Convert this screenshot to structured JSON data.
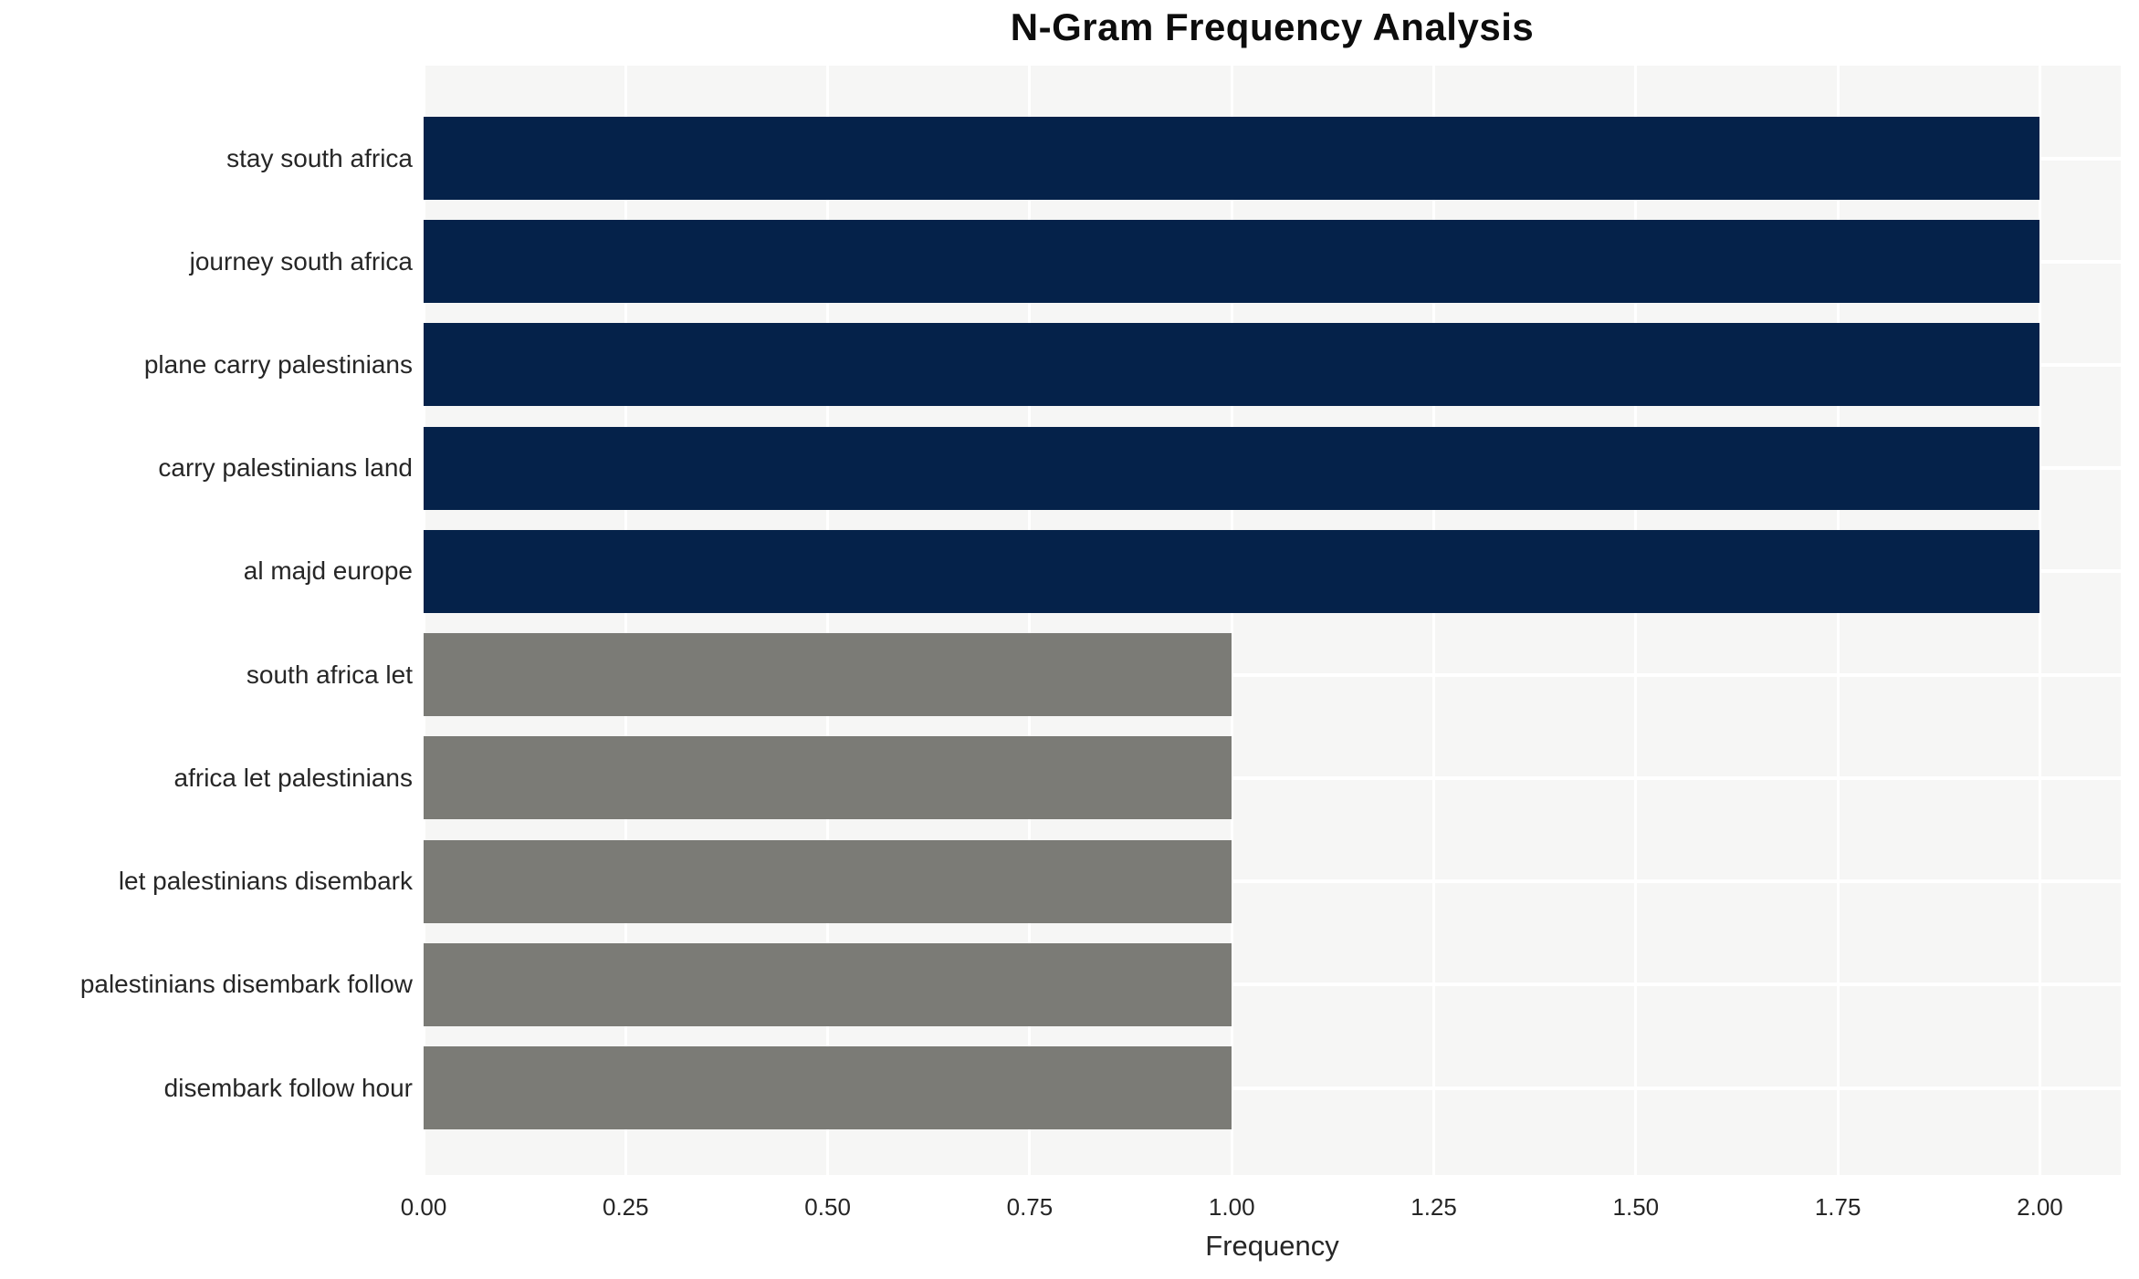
{
  "chart_data": {
    "type": "bar",
    "orientation": "horizontal",
    "title": "N-Gram Frequency Analysis",
    "xlabel": "Frequency",
    "ylabel": "",
    "categories": [
      "stay south africa",
      "journey south africa",
      "plane carry palestinians",
      "carry palestinians land",
      "al majd europe",
      "south africa let",
      "africa let palestinians",
      "let palestinians disembark",
      "palestinians disembark follow",
      "disembark follow hour"
    ],
    "values": [
      2,
      2,
      2,
      2,
      2,
      1,
      1,
      1,
      1,
      1
    ],
    "bar_colors": [
      "#05224a",
      "#05224a",
      "#05224a",
      "#05224a",
      "#05224a",
      "#7b7b76",
      "#7b7b76",
      "#7b7b76",
      "#7b7b76",
      "#7b7b76"
    ],
    "xticks": [
      "0.00",
      "0.25",
      "0.50",
      "0.75",
      "1.00",
      "1.25",
      "1.50",
      "1.75",
      "2.00"
    ],
    "xtick_values": [
      0,
      0.25,
      0.5,
      0.75,
      1.0,
      1.25,
      1.5,
      1.75,
      2.0
    ],
    "xlim": [
      0,
      2.1
    ],
    "grid": true,
    "legend": false,
    "colors": {
      "plot_background": "#f6f6f5",
      "figure_background": "#ffffff",
      "gridline": "#ffffff",
      "navy_bar": "#05224a",
      "gray_bar": "#7b7b76",
      "text": "#262626",
      "title_text": "#0d0d0d"
    }
  }
}
